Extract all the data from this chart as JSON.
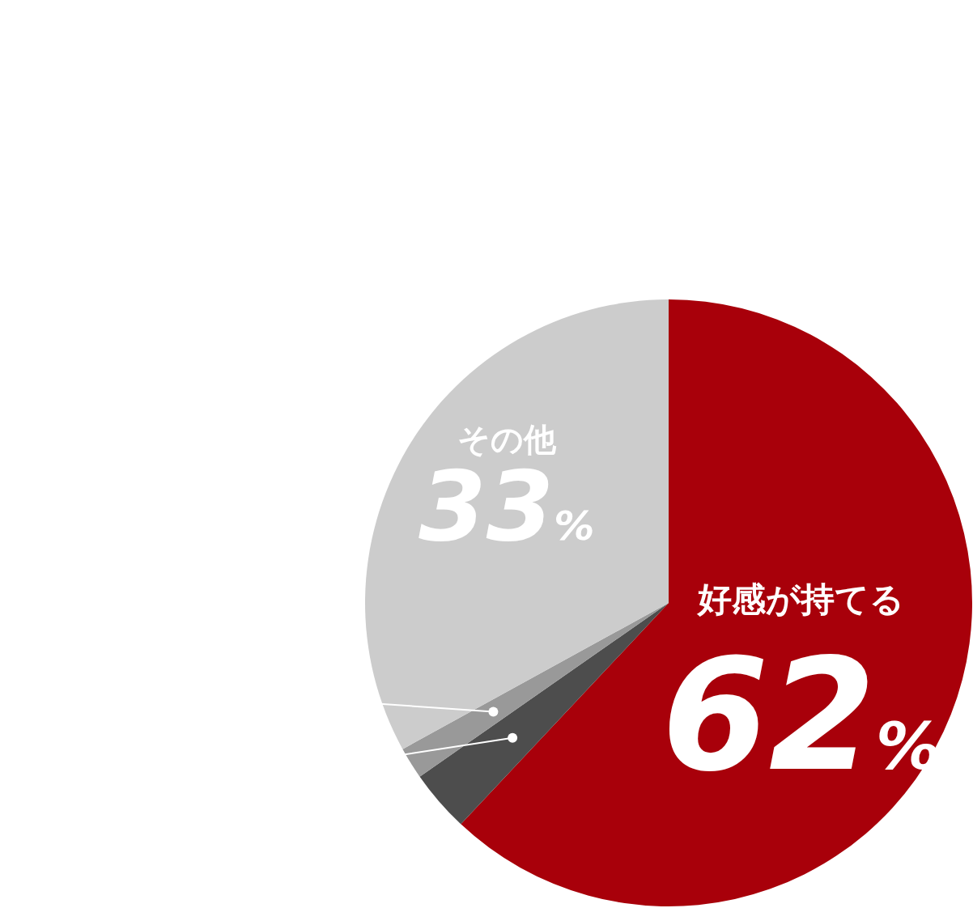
{
  "chart_data": {
    "type": "pie",
    "categories": [
      "好感が持てる",
      null,
      null,
      "その他"
    ],
    "values": [
      62,
      3.3,
      1.7,
      33
    ],
    "colors": [
      "#a8000a",
      "#4d4d4d",
      "#999999",
      "#cccccc"
    ],
    "value_labels": [
      "62%",
      null,
      null,
      "33%"
    ]
  }
}
